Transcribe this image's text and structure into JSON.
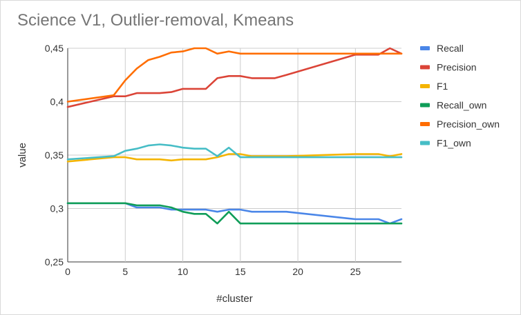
{
  "chart_data": {
    "type": "line",
    "title": "Science V1, Outlier-removal, Kmeans",
    "xlabel": "#cluster",
    "ylabel": "value",
    "xlim": [
      0,
      29
    ],
    "ylim": [
      0.25,
      0.45
    ],
    "x_ticks": [
      0,
      5,
      10,
      15,
      20,
      25
    ],
    "x_tick_labels": [
      "0",
      "5",
      "10",
      "15",
      "20",
      "25"
    ],
    "y_ticks": [
      0.25,
      0.3,
      0.35,
      0.4,
      0.45
    ],
    "y_tick_labels": [
      "0,25",
      "0,3",
      "0,35",
      "0,4",
      "0,45"
    ],
    "grid": true,
    "legend_position": "right",
    "series": [
      {
        "name": "Recall",
        "color": "#4a86e8",
        "points": [
          [
            0,
            0.305
          ],
          [
            5,
            0.305
          ],
          [
            6,
            0.301
          ],
          [
            8,
            0.301
          ],
          [
            9,
            0.299
          ],
          [
            12,
            0.299
          ],
          [
            13,
            0.297
          ],
          [
            14,
            0.299
          ],
          [
            15,
            0.299
          ],
          [
            16,
            0.297
          ],
          [
            19,
            0.297
          ],
          [
            25,
            0.29
          ],
          [
            27,
            0.29
          ],
          [
            28,
            0.286
          ],
          [
            29,
            0.29
          ]
        ]
      },
      {
        "name": "Precision",
        "color": "#db4437",
        "points": [
          [
            0,
            0.395
          ],
          [
            4,
            0.405
          ],
          [
            5,
            0.405
          ],
          [
            6,
            0.408
          ],
          [
            8,
            0.408
          ],
          [
            9,
            0.409
          ],
          [
            10,
            0.412
          ],
          [
            12,
            0.412
          ],
          [
            13,
            0.422
          ],
          [
            14,
            0.424
          ],
          [
            15,
            0.424
          ],
          [
            16,
            0.422
          ],
          [
            18,
            0.422
          ],
          [
            19,
            0.425
          ],
          [
            25,
            0.444
          ],
          [
            27,
            0.444
          ],
          [
            28,
            0.45
          ],
          [
            29,
            0.445
          ]
        ]
      },
      {
        "name": "F1",
        "color": "#f4b400",
        "points": [
          [
            0,
            0.344
          ],
          [
            4,
            0.348
          ],
          [
            5,
            0.348
          ],
          [
            6,
            0.346
          ],
          [
            8,
            0.346
          ],
          [
            9,
            0.345
          ],
          [
            10,
            0.346
          ],
          [
            12,
            0.346
          ],
          [
            13,
            0.348
          ],
          [
            14,
            0.351
          ],
          [
            15,
            0.351
          ],
          [
            16,
            0.349
          ],
          [
            18,
            0.349
          ],
          [
            19,
            0.349
          ],
          [
            25,
            0.351
          ],
          [
            27,
            0.351
          ],
          [
            28,
            0.349
          ],
          [
            29,
            0.351
          ]
        ]
      },
      {
        "name": "Recall_own",
        "color": "#0f9d58",
        "points": [
          [
            0,
            0.305
          ],
          [
            5,
            0.305
          ],
          [
            6,
            0.303
          ],
          [
            8,
            0.303
          ],
          [
            9,
            0.301
          ],
          [
            10,
            0.297
          ],
          [
            11,
            0.295
          ],
          [
            12,
            0.295
          ],
          [
            13,
            0.286
          ],
          [
            14,
            0.297
          ],
          [
            15,
            0.286
          ],
          [
            29,
            0.286
          ]
        ]
      },
      {
        "name": "Precision_own",
        "color": "#ff6d01",
        "points": [
          [
            0,
            0.4
          ],
          [
            4,
            0.406
          ],
          [
            5,
            0.42
          ],
          [
            6,
            0.431
          ],
          [
            7,
            0.439
          ],
          [
            8,
            0.442
          ],
          [
            9,
            0.446
          ],
          [
            10,
            0.447
          ],
          [
            11,
            0.45
          ],
          [
            12,
            0.45
          ],
          [
            13,
            0.445
          ],
          [
            14,
            0.447
          ],
          [
            15,
            0.445
          ],
          [
            25,
            0.445
          ],
          [
            29,
            0.445
          ]
        ]
      },
      {
        "name": "F1_own",
        "color": "#46bdc6",
        "points": [
          [
            0,
            0.346
          ],
          [
            4,
            0.349
          ],
          [
            5,
            0.354
          ],
          [
            6,
            0.356
          ],
          [
            7,
            0.359
          ],
          [
            8,
            0.36
          ],
          [
            9,
            0.359
          ],
          [
            10,
            0.357
          ],
          [
            11,
            0.356
          ],
          [
            12,
            0.356
          ],
          [
            13,
            0.349
          ],
          [
            14,
            0.357
          ],
          [
            15,
            0.348
          ],
          [
            29,
            0.348
          ]
        ]
      }
    ]
  }
}
